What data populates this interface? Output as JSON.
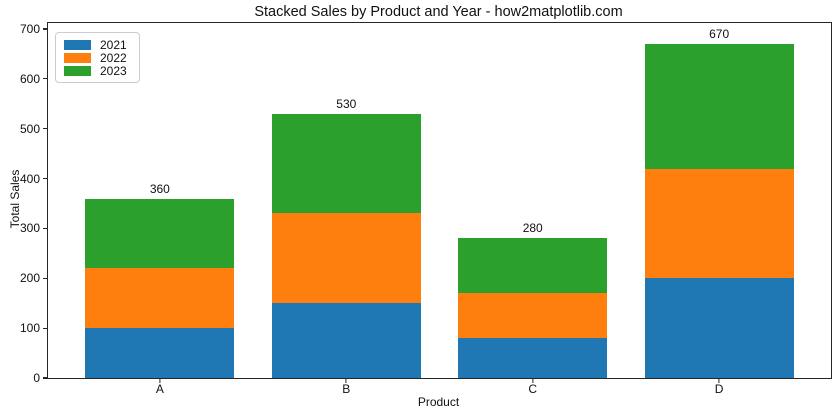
{
  "chart_data": {
    "type": "bar",
    "stacked": true,
    "title": "Stacked Sales by Product and Year - how2matplotlib.com",
    "xlabel": "Product",
    "ylabel": "Total Sales",
    "categories": [
      "A",
      "B",
      "C",
      "D"
    ],
    "series": [
      {
        "name": "2021",
        "color": "#1f77b4",
        "values": [
          100,
          150,
          80,
          200
        ]
      },
      {
        "name": "2022",
        "color": "#ff7f0e",
        "values": [
          120,
          180,
          90,
          220
        ]
      },
      {
        "name": "2023",
        "color": "#2ca02c",
        "values": [
          140,
          200,
          110,
          250
        ]
      }
    ],
    "bar_totals": [
      "360",
      "530",
      "280",
      "670"
    ],
    "ylim": [
      0,
      712
    ],
    "yticks": [
      0,
      100,
      200,
      300,
      400,
      500,
      600,
      700
    ],
    "legend": {
      "entries": [
        "2021",
        "2022",
        "2023"
      ],
      "position": "upper left"
    },
    "grid": false,
    "axis_color": "#262626",
    "background_color": "#ffffff"
  }
}
